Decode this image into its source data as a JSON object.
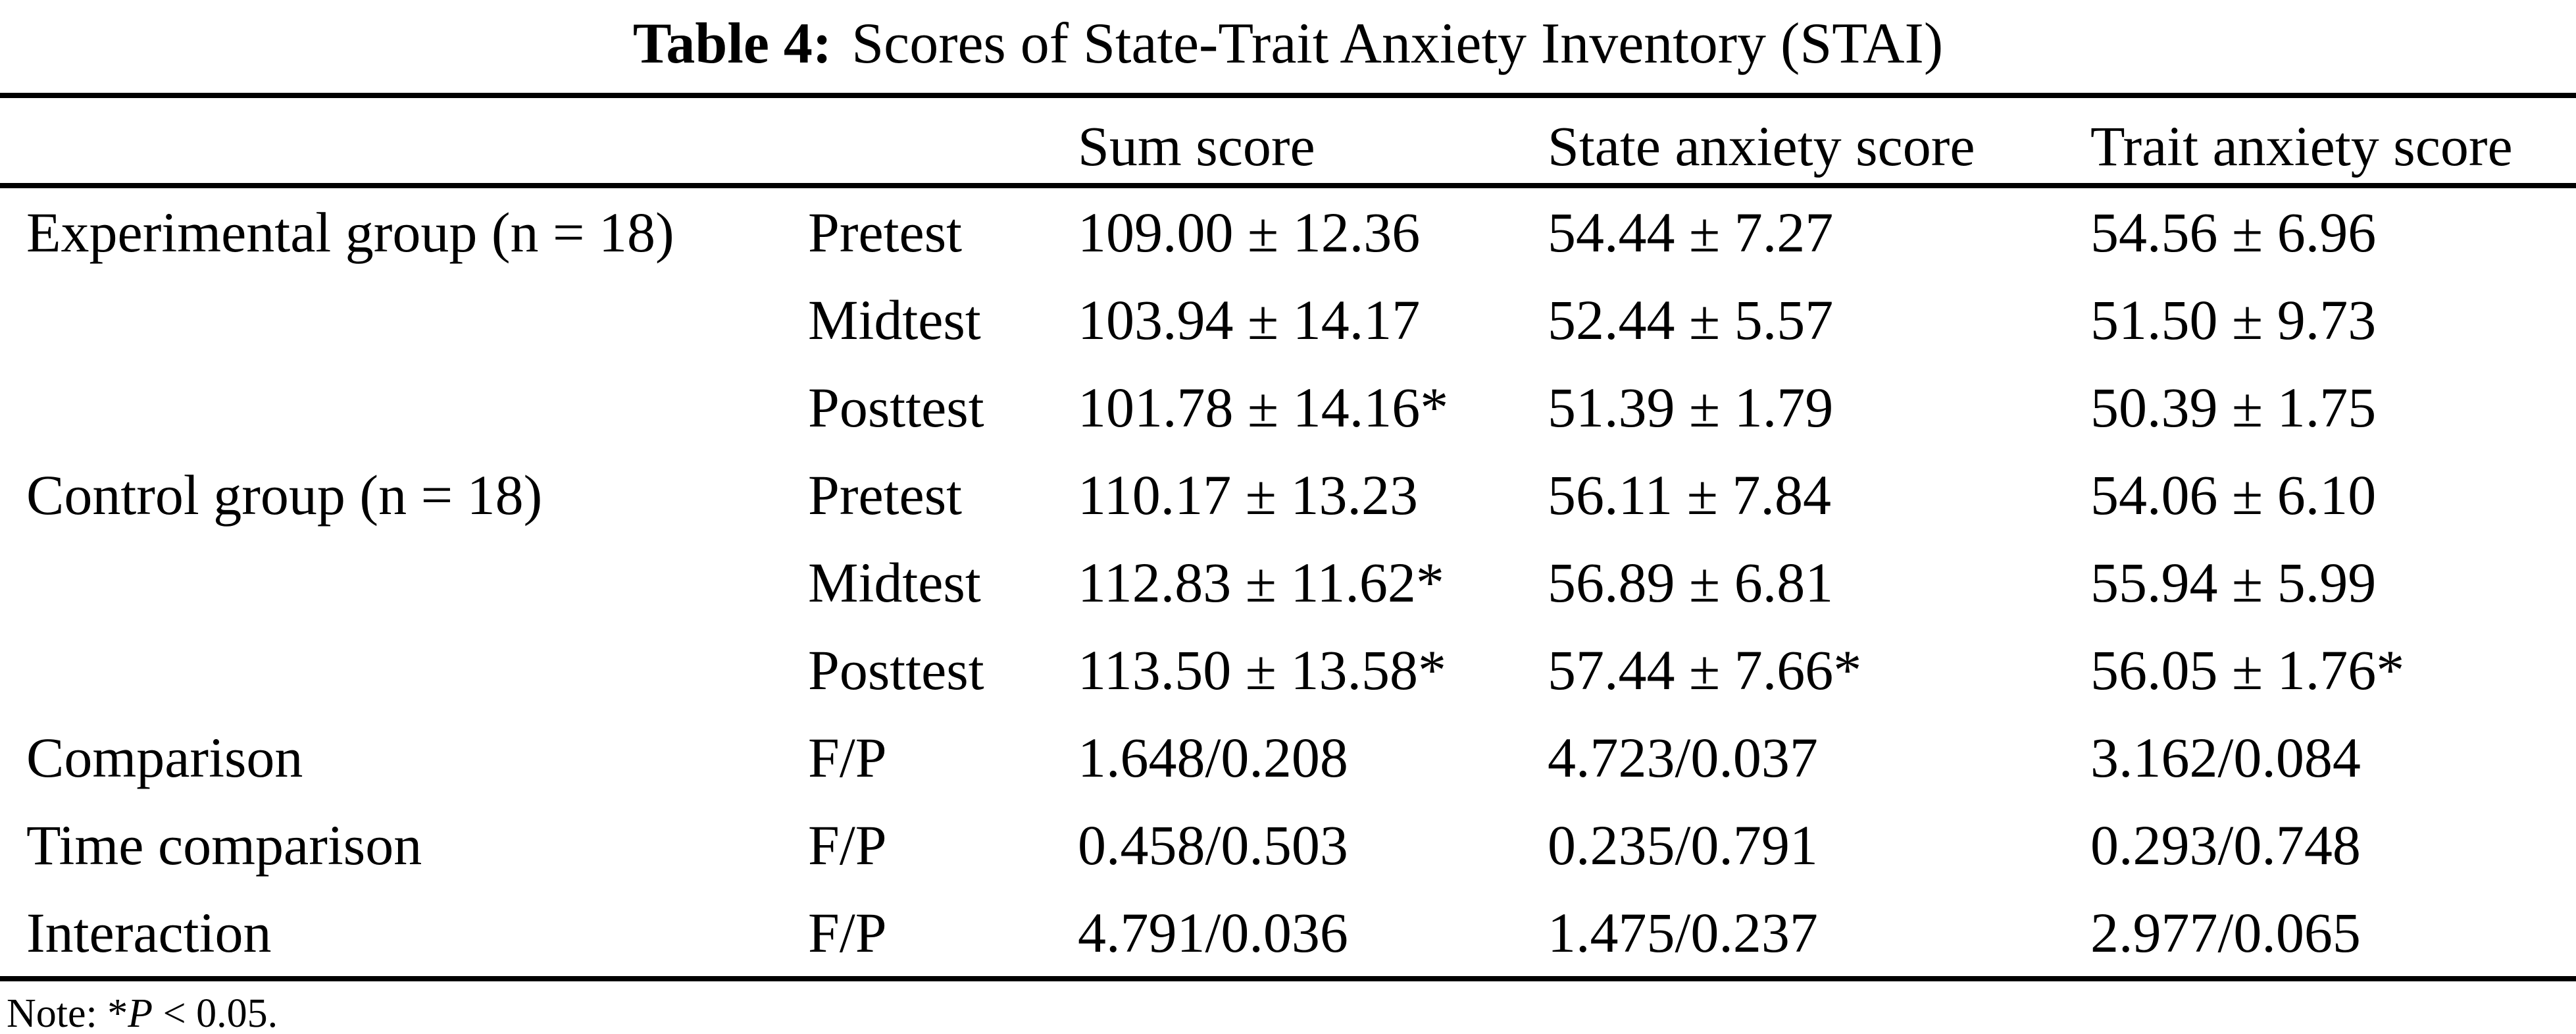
{
  "title": {
    "label": "Table 4:",
    "text": "Scores of State-Trait Anxiety Inventory (STAI)"
  },
  "table": {
    "headers": [
      "",
      "",
      "Sum score",
      "State anxiety score",
      "Trait anxiety score"
    ],
    "rows": [
      {
        "group": "Experimental group (n = 18)",
        "test": "Pretest",
        "sum": "109.00 ± 12.36",
        "state": "54.44 ± 7.27",
        "trait": "54.56 ± 6.96"
      },
      {
        "group": "",
        "test": "Midtest",
        "sum": "103.94 ± 14.17",
        "state": "52.44 ± 5.57",
        "trait": "51.50 ± 9.73"
      },
      {
        "group": "",
        "test": "Posttest",
        "sum": "101.78 ± 14.16*",
        "state": "51.39 ± 1.79",
        "trait": "50.39 ± 1.75"
      },
      {
        "group": "Control group (n = 18)",
        "test": "Pretest",
        "sum": "110.17 ± 13.23",
        "state": "56.11 ± 7.84",
        "trait": "54.06 ± 6.10"
      },
      {
        "group": "",
        "test": "Midtest",
        "sum": "112.83 ± 11.62*",
        "state": "56.89 ± 6.81",
        "trait": "55.94 ± 5.99"
      },
      {
        "group": "",
        "test": "Posttest",
        "sum": "113.50 ± 13.58*",
        "state": "57.44 ± 7.66*",
        "trait": "56.05 ± 1.76*"
      },
      {
        "group": "Comparison",
        "test": "F/P",
        "sum": "1.648/0.208",
        "state": "4.723/0.037",
        "trait": "3.162/0.084"
      },
      {
        "group": "Time comparison",
        "test": "F/P",
        "sum": "0.458/0.503",
        "state": "0.235/0.791",
        "trait": "0.293/0.748"
      },
      {
        "group": "Interaction",
        "test": "F/P",
        "sum": "4.791/0.036",
        "state": "1.475/0.237",
        "trait": "2.977/0.065"
      }
    ]
  },
  "note": {
    "prefix": "Note: *",
    "p": "P",
    "suffix": " < 0.05."
  },
  "colors": {
    "text": "#000000",
    "background": "#ffffff",
    "rule": "#000000"
  }
}
